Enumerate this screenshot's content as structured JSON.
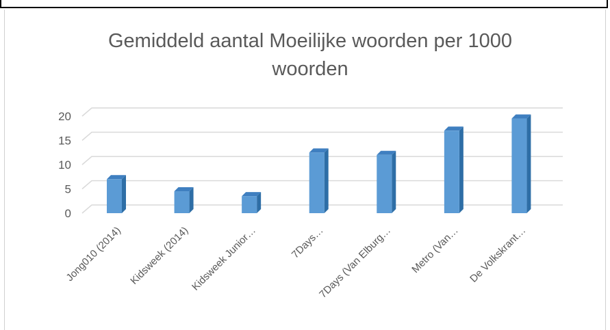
{
  "chart_data": {
    "type": "bar",
    "title_lines": [
      "Gemiddeld aantal Moeilijke woorden per 1000",
      "woorden"
    ],
    "categories": [
      "Jong010 (2014)",
      "Kidsweek (2014)",
      "Kidsweek Junior…",
      "7Days…",
      "7Days (Van Elburg…",
      "Metro (Van…",
      "De Volkskrant…"
    ],
    "values": [
      7,
      4.5,
      3.5,
      12.5,
      12,
      17,
      19.5
    ],
    "yticks": [
      "0",
      "5",
      "10",
      "15",
      "20"
    ],
    "ylim": [
      0,
      20
    ],
    "grid": true,
    "legend": "none",
    "bar_color": "#5b9bd5",
    "bar_side_color": "#2e6ea6",
    "bar_top_color": "#3f7fc0",
    "grid_color": "#d9d9d9"
  }
}
